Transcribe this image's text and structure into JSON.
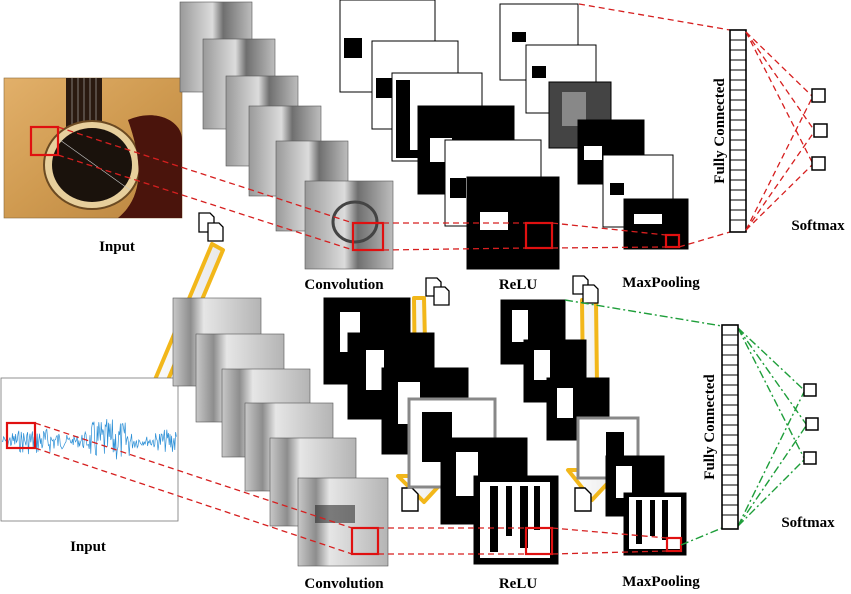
{
  "top_branch": {
    "input_label": "Input",
    "convolution_label": "Convolution",
    "relu_label": "ReLU",
    "maxpooling_label": "MaxPooling",
    "fully_connected_label": "Fully Connected",
    "softmax_label": "Softmax"
  },
  "bottom_branch": {
    "input_label": "Input",
    "convolution_label": "Convolution",
    "relu_label": "ReLU",
    "maxpooling_label": "MaxPooling",
    "fully_connected_label": "Fully Connected",
    "softmax_label": "Softmax"
  },
  "colors": {
    "highlight": "#e01010",
    "top_connector": "#d61f1f",
    "bottom_fc_connector": "#1e9e3a",
    "transfer_arrow": "#f2b71a",
    "signal": "#2b8fd6",
    "guitar_wood": "#d9a55a"
  },
  "icons": {
    "transfer": "copy-document-icon",
    "paste": "document-icon"
  }
}
